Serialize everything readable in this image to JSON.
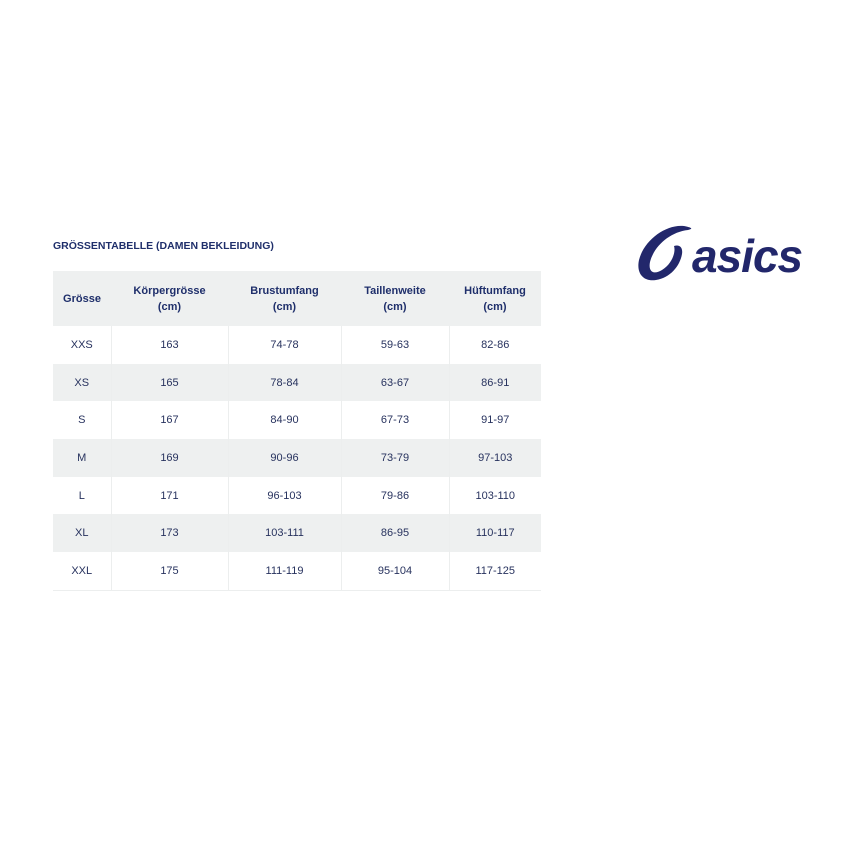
{
  "title": "GRÖSSENTABELLE (DAMEN BEKLEIDUNG)",
  "logo": {
    "text": "asics",
    "color": "#22276b"
  },
  "colors": {
    "text": "#1f2f6b",
    "stripe": "#eef0f0"
  },
  "table": {
    "headers": [
      {
        "line1": "Grösse",
        "line2": ""
      },
      {
        "line1": "Körpergrösse",
        "line2": "(cm)"
      },
      {
        "line1": "Brustumfang",
        "line2": "(cm)"
      },
      {
        "line1": "Taillenweite",
        "line2": "(cm)"
      },
      {
        "line1": "Hüftumfang",
        "line2": "(cm)"
      }
    ],
    "rows": [
      [
        "XXS",
        "163",
        "74-78",
        "59-63",
        "82-86"
      ],
      [
        "XS",
        "165",
        "78-84",
        "63-67",
        "86-91"
      ],
      [
        "S",
        "167",
        "84-90",
        "67-73",
        "91-97"
      ],
      [
        "M",
        "169",
        "90-96",
        "73-79",
        "97-103"
      ],
      [
        "L",
        "171",
        "96-103",
        "79-86",
        "103-110"
      ],
      [
        "XL",
        "173",
        "103-111",
        "86-95",
        "110-117"
      ],
      [
        "XXL",
        "175",
        "111-119",
        "95-104",
        "117-125"
      ]
    ]
  }
}
